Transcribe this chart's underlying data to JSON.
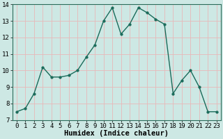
{
  "x": [
    0,
    1,
    2,
    3,
    4,
    5,
    6,
    7,
    8,
    9,
    10,
    11,
    12,
    13,
    14,
    15,
    16,
    17,
    18,
    19,
    20,
    21,
    22,
    23
  ],
  "y": [
    7.5,
    7.7,
    8.6,
    10.2,
    9.6,
    9.6,
    9.7,
    10.0,
    10.8,
    11.55,
    13.0,
    13.8,
    12.2,
    12.8,
    13.8,
    13.5,
    13.1,
    12.8,
    8.6,
    9.4,
    10.0,
    9.0,
    7.5,
    7.5
  ],
  "xlabel": "Humidex (Indice chaleur)",
  "ylim": [
    7,
    14
  ],
  "xlim": [
    -0.5,
    23.5
  ],
  "yticks": [
    7,
    8,
    9,
    10,
    11,
    12,
    13,
    14
  ],
  "xticks": [
    0,
    1,
    2,
    3,
    4,
    5,
    6,
    7,
    8,
    9,
    10,
    11,
    12,
    13,
    14,
    15,
    16,
    17,
    18,
    19,
    20,
    21,
    22,
    23
  ],
  "line_color": "#1a6b5a",
  "marker": "o",
  "marker_size": 2.5,
  "bg_color": "#cde8e4",
  "grid_color": "#e8b8b8",
  "tick_label_fontsize": 6.5,
  "xlabel_fontsize": 7.5,
  "line_width": 1.0
}
